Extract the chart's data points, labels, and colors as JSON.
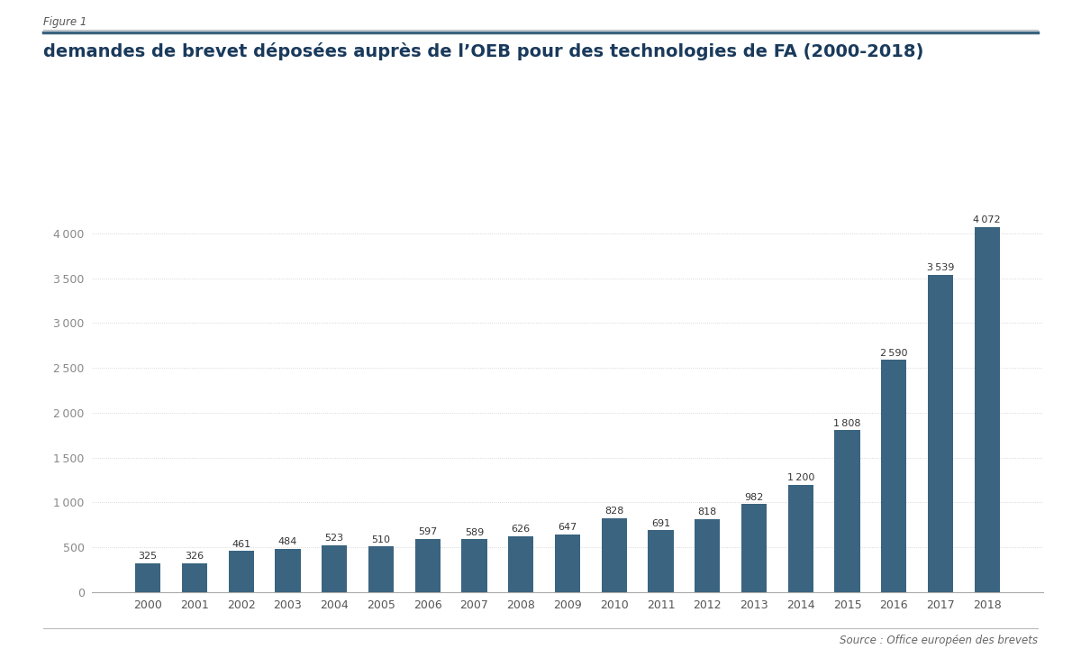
{
  "years": [
    2000,
    2001,
    2002,
    2003,
    2004,
    2005,
    2006,
    2007,
    2008,
    2009,
    2010,
    2011,
    2012,
    2013,
    2014,
    2015,
    2016,
    2017,
    2018
  ],
  "values": [
    325,
    326,
    461,
    484,
    523,
    510,
    597,
    589,
    626,
    647,
    828,
    691,
    818,
    982,
    1200,
    1808,
    2590,
    3539,
    4072
  ],
  "bar_color": "#3a6480",
  "background_color": "#ffffff",
  "figure_label": "Figure 1",
  "title": "demandes de brevet déposées auprès de l’OEB pour des technologies de FA (2000-2018)",
  "source": "Source : Office européen des brevets",
  "ylim": [
    0,
    4400
  ],
  "yticks": [
    0,
    500,
    1000,
    1500,
    2000,
    2500,
    3000,
    3500,
    4000
  ],
  "title_fontsize": 14,
  "label_fontsize": 9,
  "annotation_fontsize": 8,
  "figure_label_fontsize": 8.5,
  "source_fontsize": 8.5,
  "title_color": "#1a3a5c",
  "figure_label_color": "#555555",
  "ytick_color": "#888888",
  "xtick_color": "#555555",
  "annotation_color": "#333333",
  "grid_color": "#cccccc",
  "separator_color": "#3a6480",
  "source_color": "#666666"
}
